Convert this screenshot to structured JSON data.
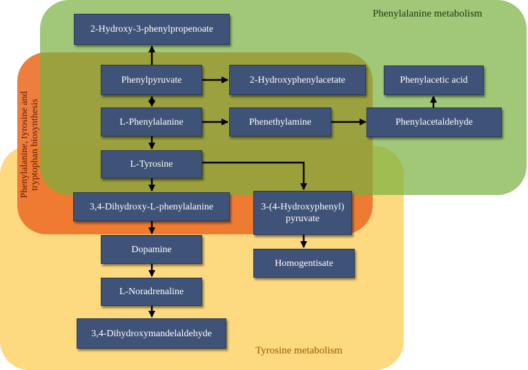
{
  "regions": {
    "phenylalanine_metabolism": "Phenylalanine metabolism",
    "tyrosine_metabolism": "Tyrosine metabolism",
    "biosynthesis": "Phenylalanine, tyrosine and tryptophan biosynthesis"
  },
  "nodes": {
    "hydroxy_phenylpropenoate": "2-Hydroxy-3-phenylpropenoate",
    "phenylpyruvate": "Phenylpyruvate",
    "hydroxyphenylacetate": "2-Hydroxyphenylacetate",
    "phenylacetic_acid": "Phenylacetic acid",
    "l_phenylalanine": "L-Phenylalanine",
    "phenethylamine": "Phenethylamine",
    "phenylacetaldehyde": "Phenylacetaldehyde",
    "l_tyrosine": "L-Tyrosine",
    "dopa": "3,4-Dihydroxy-L-phenylalanine",
    "hydroxyphenyl_pyruvate": "3-(4-Hydroxyphenyl) pyruvate",
    "dopamine": "Dopamine",
    "homogentisate": "Homogentisate",
    "l_noradrenaline": "L-Noradrenaline",
    "dihydroxymandelaldehyde": "3,4-Dihydroxymandelaldehyde"
  }
}
